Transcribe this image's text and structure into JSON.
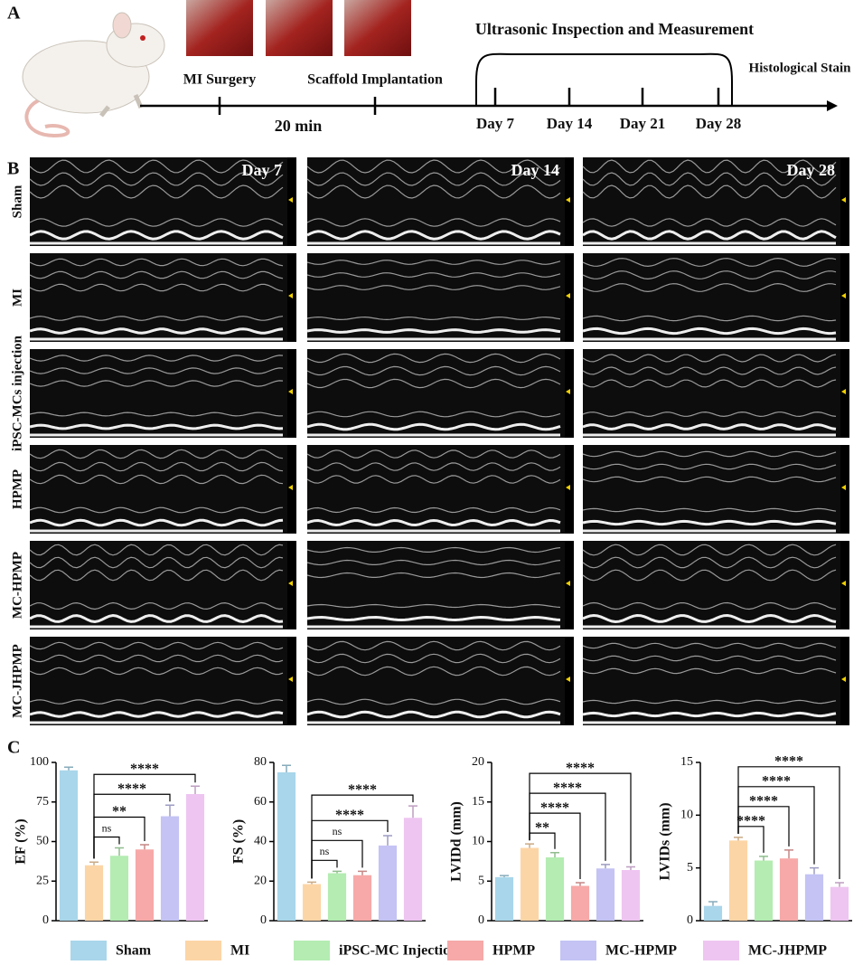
{
  "panel_labels": [
    "A",
    "B",
    "C"
  ],
  "timeline": {
    "title": "Ultrasonic Inspection and Measurement",
    "surgery": "MI Surgery",
    "implant": "Scaffold Implantation",
    "duration": "20 min",
    "stain": "Histological Stain",
    "days": [
      "Day 7",
      "Day 14",
      "Day 21",
      "Day 28"
    ]
  },
  "echo": {
    "columns": [
      "Day 7",
      "Day 14",
      "Day 28"
    ],
    "rows": [
      "Sham",
      "MI",
      "iPSC-MCs injection",
      "HPMP",
      "MC-HPMP",
      "MC-JHPMP"
    ]
  },
  "legend": [
    {
      "name": "Sham",
      "color": "#a9d6ea"
    },
    {
      "name": "MI",
      "color": "#fcd5a6"
    },
    {
      "name": "iPSC-MC Injection",
      "color": "#b4ecb2"
    },
    {
      "name": "HPMP",
      "color": "#f6a9a8"
    },
    {
      "name": "MC-HPMP",
      "color": "#c4c3f4"
    },
    {
      "name": "MC-JHPMP",
      "color": "#eec5f1"
    }
  ],
  "chart_data": [
    {
      "type": "bar",
      "ylabel": "EF (%)",
      "values": [
        95,
        35,
        41,
        45,
        66,
        80
      ],
      "errors": [
        2,
        2,
        5,
        3,
        7,
        5
      ],
      "ylim": [
        0,
        100
      ],
      "yticks": [
        0,
        25,
        50,
        75,
        100
      ],
      "comparisons": [
        "ns",
        "**",
        "****",
        "****"
      ]
    },
    {
      "type": "bar",
      "ylabel": "FS (%)",
      "values": [
        75,
        18.5,
        24,
        23,
        38,
        52
      ],
      "errors": [
        3.5,
        1,
        1,
        2,
        5,
        6
      ],
      "ylim": [
        0,
        80
      ],
      "yticks": [
        0,
        20,
        40,
        60,
        80
      ],
      "comparisons": [
        "ns",
        "ns",
        "****",
        "****"
      ]
    },
    {
      "type": "bar",
      "ylabel": "LVIDd (mm)",
      "values": [
        5.5,
        9.2,
        8,
        4.4,
        6.6,
        6.4
      ],
      "errors": [
        0.2,
        0.5,
        0.6,
        0.4,
        0.5,
        0.4
      ],
      "ylim": [
        0,
        20
      ],
      "yticks": [
        0,
        5,
        10,
        15,
        20
      ],
      "comparisons": [
        "**",
        "****",
        "****",
        "****"
      ]
    },
    {
      "type": "bar",
      "ylabel": "LVIDs (mm)",
      "values": [
        1.4,
        7.6,
        5.7,
        5.9,
        4.4,
        3.2
      ],
      "errors": [
        0.4,
        0.3,
        0.4,
        0.8,
        0.6,
        0.4
      ],
      "ylim": [
        0,
        15
      ],
      "yticks": [
        0,
        5,
        10,
        15
      ],
      "comparisons": [
        "****",
        "****",
        "****",
        "****"
      ]
    }
  ]
}
